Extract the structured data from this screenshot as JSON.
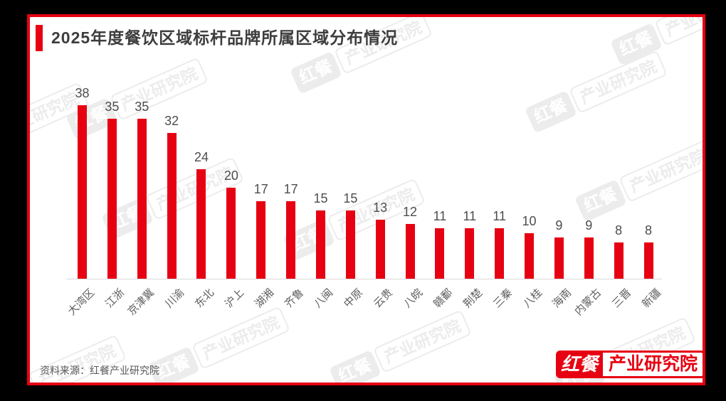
{
  "page": {
    "background_color": "#000000",
    "card_background": "#ffffff",
    "card_border_color": "#e60012"
  },
  "header": {
    "title": "2025年度餐饮区域标杆品牌所属区域分布情况",
    "accent_color": "#e60012"
  },
  "chart_data": {
    "type": "bar",
    "title": "2025年度餐饮区域标杆品牌所属区域分布情况",
    "categories": [
      "大湾区",
      "江浙",
      "京津冀",
      "川渝",
      "东北",
      "沪上",
      "湖湘",
      "齐鲁",
      "八闽",
      "中原",
      "云贵",
      "八皖",
      "赣鄱",
      "荆楚",
      "三秦",
      "八桂",
      "海南",
      "内蒙古",
      "三晋",
      "新疆"
    ],
    "values": [
      38,
      35,
      35,
      32,
      24,
      20,
      17,
      17,
      15,
      15,
      13,
      12,
      11,
      11,
      11,
      10,
      9,
      9,
      8,
      8
    ],
    "xlabel": "",
    "ylabel": "",
    "ylim": [
      0,
      40
    ],
    "grid": false,
    "legend": false,
    "value_labels_shown": true,
    "x_label_rotation_deg": 45,
    "bar_color": "#e60012",
    "value_label_color": "#4d4d4d",
    "axis_label_color": "#5f5f5f"
  },
  "footer": {
    "source_label": "资料来源：红餐产业研究院"
  },
  "logo": {
    "part1": "红餐",
    "part2": "产业研究院",
    "color": "#e60012"
  },
  "watermark": {
    "part1": "红餐",
    "part2": "产业研究院"
  }
}
